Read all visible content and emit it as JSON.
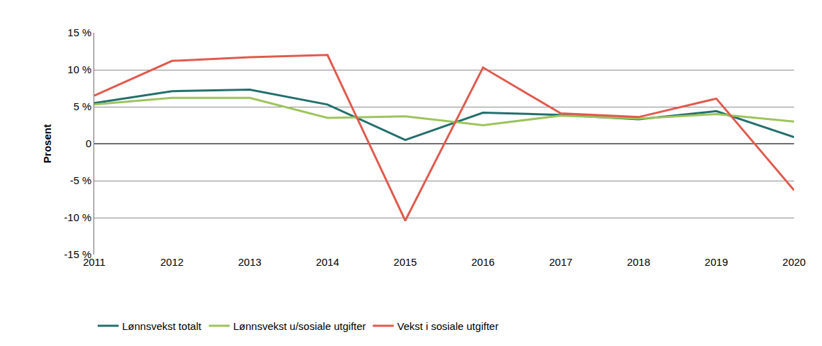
{
  "chart_data": {
    "type": "line",
    "y_label": "Prosent",
    "categories": [
      "2011",
      "2012",
      "2013",
      "2014",
      "2015",
      "2016",
      "2017",
      "2018",
      "2019",
      "2020"
    ],
    "series": [
      {
        "name": "Lønnsvekst totalt",
        "color": "#236f6c",
        "values": [
          5.5,
          7.1,
          7.3,
          5.3,
          0.5,
          4.2,
          3.9,
          3.3,
          4.4,
          0.9
        ]
      },
      {
        "name": "Lønnsvekst u/sosiale utgifter",
        "color": "#9cc45c",
        "values": [
          5.3,
          6.2,
          6.2,
          3.5,
          3.7,
          2.5,
          3.8,
          3.4,
          4.0,
          3.0
        ]
      },
      {
        "name": "Vekst i sosiale utgifter",
        "color": "#e05a4e",
        "values": [
          6.5,
          11.2,
          11.7,
          12.0,
          -10.4,
          10.3,
          4.1,
          3.6,
          6.1,
          -6.3
        ]
      }
    ],
    "ylim": [
      -15,
      15
    ],
    "yticks": [
      {
        "value": -15,
        "label": "-15 %"
      },
      {
        "value": -10,
        "label": "-10 %"
      },
      {
        "value": -5,
        "label": "-5 %"
      },
      0,
      {
        "value": 5,
        "label": "5 %"
      },
      {
        "value": 10,
        "label": "10 %"
      },
      {
        "value": 15,
        "label": "15 %"
      }
    ],
    "grid": true,
    "legend": "bottom"
  }
}
